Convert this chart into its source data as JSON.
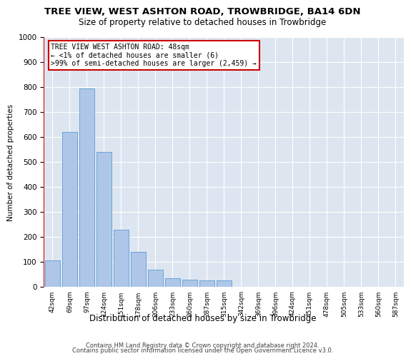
{
  "title": "TREE VIEW, WEST ASHTON ROAD, TROWBRIDGE, BA14 6DN",
  "subtitle": "Size of property relative to detached houses in Trowbridge",
  "xlabel": "Distribution of detached houses by size in Trowbridge",
  "ylabel": "Number of detached properties",
  "bar_color": "#aec6e8",
  "bar_edge_color": "#5b9bd5",
  "background_color": "#dde6f0",
  "ylim": [
    0,
    1000
  ],
  "yticks": [
    0,
    100,
    200,
    300,
    400,
    500,
    600,
    700,
    800,
    900,
    1000
  ],
  "categories": [
    "42sqm",
    "69sqm",
    "97sqm",
    "124sqm",
    "151sqm",
    "178sqm",
    "206sqm",
    "233sqm",
    "260sqm",
    "287sqm",
    "315sqm",
    "342sqm",
    "369sqm",
    "396sqm",
    "424sqm",
    "451sqm",
    "478sqm",
    "505sqm",
    "533sqm",
    "560sqm",
    "587sqm"
  ],
  "values": [
    107,
    620,
    795,
    540,
    230,
    140,
    70,
    35,
    30,
    25,
    25,
    0,
    0,
    0,
    0,
    0,
    0,
    0,
    0,
    0,
    0
  ],
  "annotation_title": "TREE VIEW WEST ASHTON ROAD: 48sqm",
  "annotation_line1": "← <1% of detached houses are smaller (6)",
  "annotation_line2": ">99% of semi-detached houses are larger (2,459) →",
  "annotation_box_color": "#ffffff",
  "annotation_box_edge": "#cc0000",
  "marker_color": "#cc0000",
  "footer1": "Contains HM Land Registry data © Crown copyright and database right 2024.",
  "footer2": "Contains public sector information licensed under the Open Government Licence v3.0."
}
